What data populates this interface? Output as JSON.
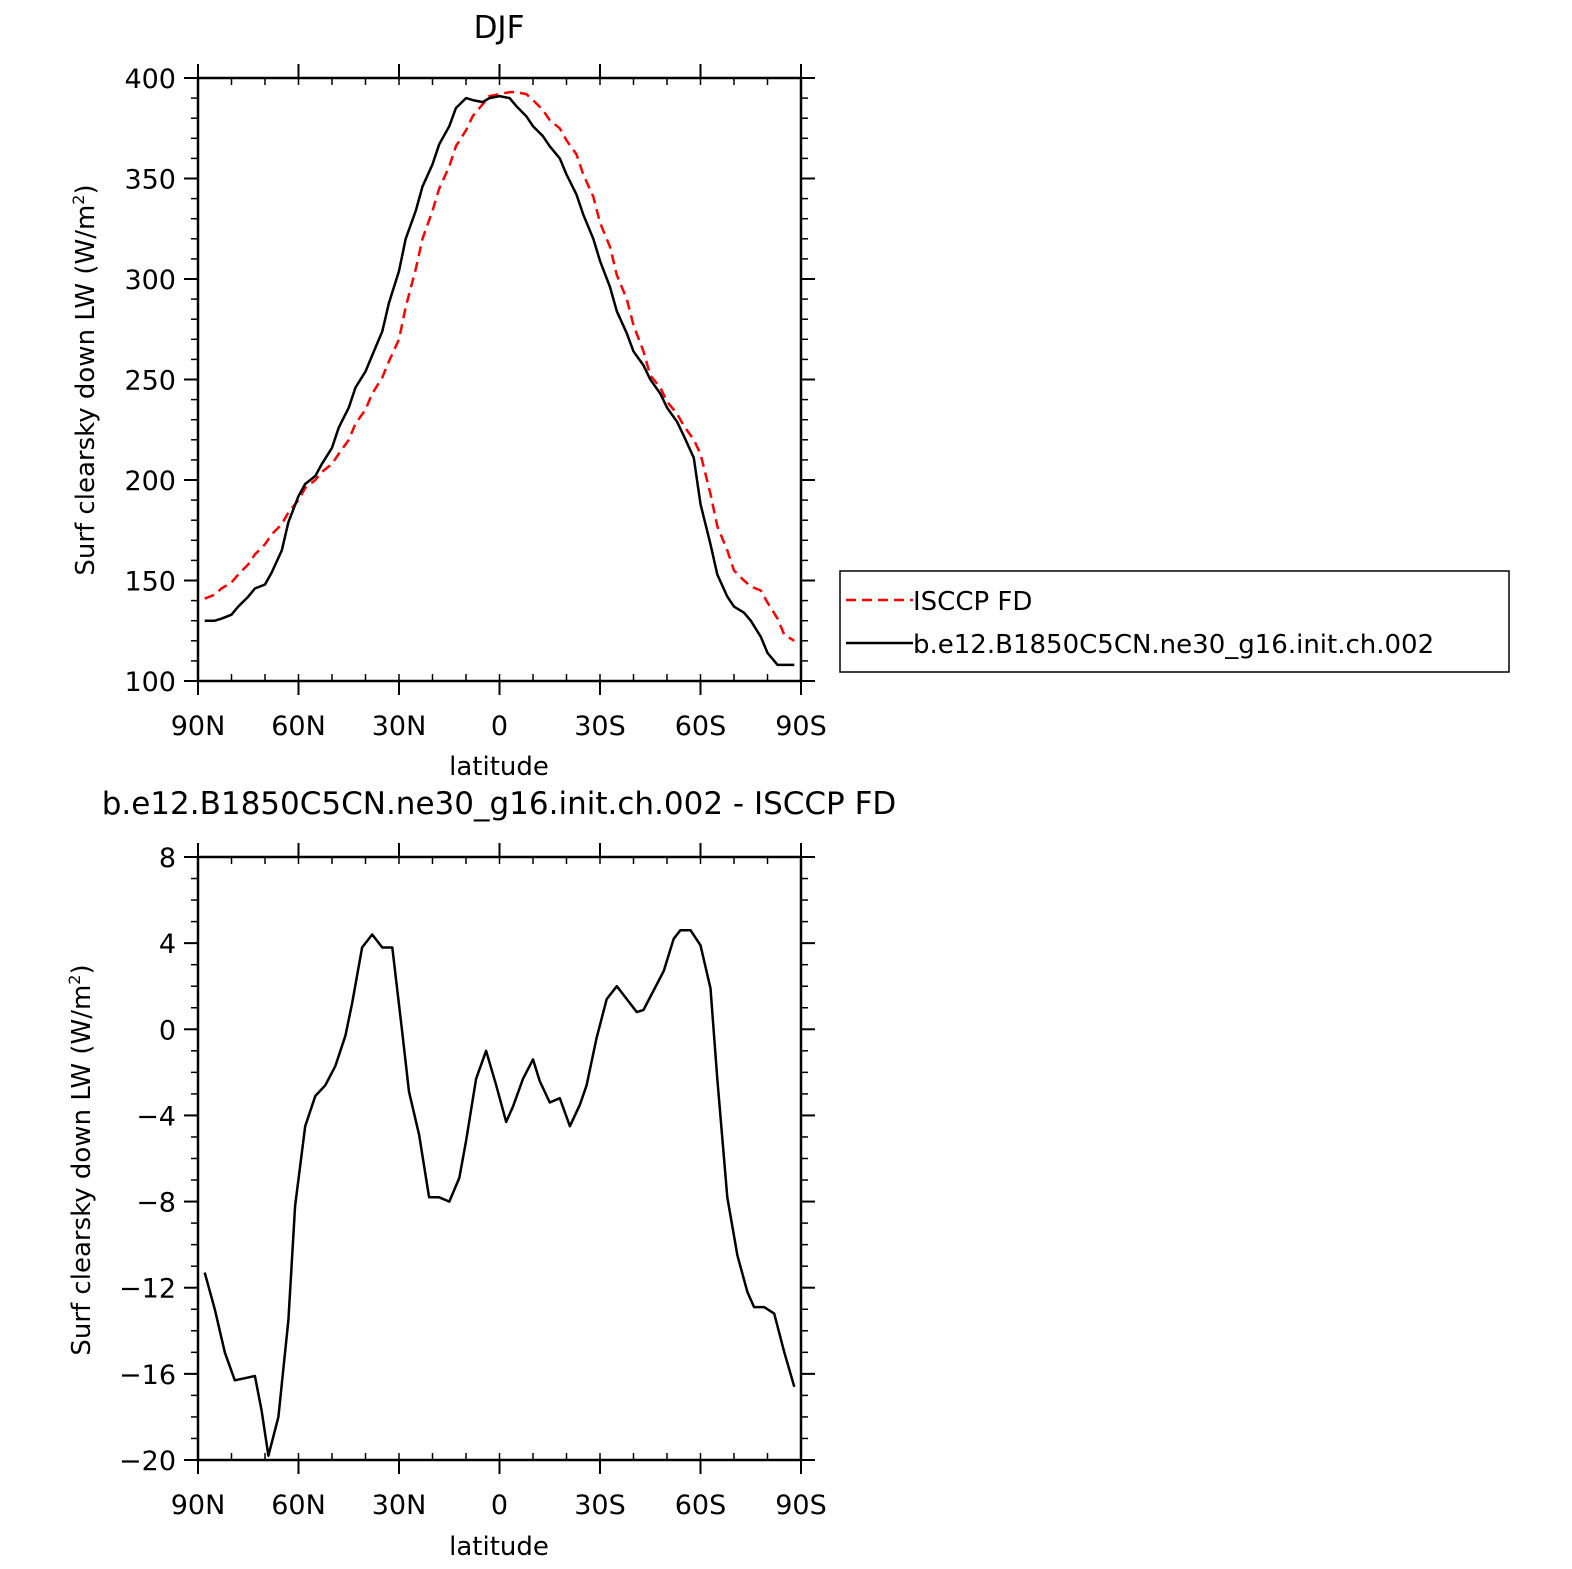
{
  "chart_data": [
    {
      "type": "line",
      "title": "DJF",
      "xlabel": "latitude",
      "ylabel_main": "Surf clearsky down LW (W/m",
      "ylabel_sup": "2",
      "ylabel_close": ")",
      "xlim": [
        90,
        -90
      ],
      "ylim": [
        100,
        400
      ],
      "xticks": [
        90,
        60,
        30,
        0,
        -30,
        -60,
        -90
      ],
      "xtick_labels": [
        "90N",
        "60N",
        "30N",
        "0",
        "30S",
        "60S",
        "90S"
      ],
      "yticks": [
        100,
        150,
        200,
        250,
        300,
        350,
        400
      ],
      "ytick_labels": [
        "100",
        "150",
        "200",
        "250",
        "300",
        "350",
        "400"
      ],
      "legend_position": "right",
      "x": [
        88,
        85,
        83,
        80,
        78,
        75,
        73,
        70,
        68,
        65,
        63,
        60,
        58,
        55,
        53,
        50,
        48,
        45,
        43,
        40,
        38,
        35,
        33,
        30,
        28,
        25,
        23,
        20,
        18,
        15,
        13,
        10,
        8,
        5,
        3,
        0,
        -3,
        -5,
        -8,
        -10,
        -13,
        -15,
        -18,
        -20,
        -23,
        -25,
        -28,
        -30,
        -33,
        -35,
        -38,
        -40,
        -43,
        -45,
        -48,
        -50,
        -53,
        -55,
        -58,
        -60,
        -63,
        -65,
        -68,
        -70,
        -73,
        -75,
        -78,
        -80,
        -83,
        -85,
        -88
      ],
      "series": [
        {
          "name": "ISCCP FD",
          "color": "#ff0000",
          "dash": "dashed",
          "values": [
            141,
            143,
            146,
            149,
            153,
            158,
            163,
            168,
            173,
            178,
            184,
            190,
            196,
            200,
            204,
            208,
            213,
            220,
            228,
            235,
            243,
            251,
            259,
            270,
            286,
            305,
            320,
            334,
            345,
            356,
            366,
            374,
            381,
            387,
            391,
            392,
            393,
            393,
            392,
            389,
            384,
            379,
            375,
            369,
            362,
            352,
            341,
            328,
            316,
            302,
            290,
            277,
            264,
            252,
            246,
            239,
            233,
            227,
            220,
            213,
            193,
            177,
            165,
            155,
            150,
            147,
            145,
            139,
            131,
            123,
            120
          ]
        },
        {
          "name": "b.e12.B1850C5CN.ne30_g16.init.ch.002",
          "color": "#000000",
          "dash": "solid",
          "values": [
            130,
            130,
            131,
            133,
            137,
            142,
            146,
            148,
            154,
            165,
            179,
            192,
            198,
            202,
            208,
            216,
            226,
            236,
            246,
            254,
            262,
            274,
            288,
            304,
            320,
            334,
            346,
            357,
            367,
            376,
            385,
            390,
            389,
            388,
            390,
            391,
            390,
            386,
            381,
            376,
            371,
            366,
            360,
            352,
            342,
            332,
            320,
            309,
            296,
            284,
            273,
            264,
            257,
            250,
            243,
            236,
            229,
            222,
            211,
            188,
            168,
            153,
            142,
            137,
            134,
            130,
            122,
            114,
            108,
            108,
            108
          ]
        }
      ]
    },
    {
      "type": "line",
      "title": "b.e12.B1850C5CN.ne30_g16.init.ch.002 - ISCCP FD",
      "xlabel": "latitude",
      "ylabel_main": "Surf clearsky down LW (W/m",
      "ylabel_sup": "2",
      "ylabel_close": ")",
      "xlim": [
        90,
        -90
      ],
      "ylim": [
        -20,
        8
      ],
      "xticks": [
        90,
        60,
        30,
        0,
        -30,
        -60,
        -90
      ],
      "xtick_labels": [
        "90N",
        "60N",
        "30N",
        "0",
        "30S",
        "60S",
        "90S"
      ],
      "yticks": [
        -20,
        -16,
        -12,
        -8,
        -4,
        0,
        4,
        8
      ],
      "ytick_labels": [
        "−20",
        "−16",
        "−12",
        "−8",
        "−4",
        "0",
        "4",
        "8"
      ],
      "x": [
        88,
        85,
        82,
        79,
        76,
        73,
        71,
        69,
        66,
        63,
        61,
        58,
        55,
        52,
        49,
        46,
        44,
        41,
        38,
        35,
        32,
        29,
        27,
        24,
        21,
        18,
        15,
        12,
        10,
        7,
        4,
        1,
        -2,
        -4,
        -7,
        -10,
        -12,
        -15,
        -18,
        -21,
        -24,
        -26,
        -29,
        -32,
        -35,
        -38,
        -41,
        -43,
        -46,
        -49,
        -52,
        -54,
        -57,
        -60,
        -63,
        -65,
        -68,
        -71,
        -74,
        -76,
        -79,
        -82,
        -85,
        -88
      ],
      "series": [
        {
          "name": "",
          "color": "#000000",
          "values": [
            -11.3,
            -13.0,
            -15.0,
            -16.3,
            -16.2,
            -16.1,
            -17.7,
            -19.8,
            -18.0,
            -13.5,
            -8.2,
            -4.5,
            -3.1,
            -2.6,
            -1.7,
            -0.3,
            1.2,
            3.8,
            4.4,
            3.8,
            3.8,
            -0.2,
            -2.9,
            -4.9,
            -7.8,
            -7.8,
            -8.0,
            -6.9,
            -5.2,
            -2.3,
            -1.0,
            -2.6,
            -4.3,
            -3.6,
            -2.3,
            -1.4,
            -2.4,
            -3.4,
            -3.2,
            -4.5,
            -3.5,
            -2.6,
            -0.4,
            1.4,
            2.0,
            1.4,
            0.8,
            0.9,
            1.8,
            2.7,
            4.2,
            4.6,
            4.6,
            3.9,
            1.9,
            -2.3,
            -7.8,
            -10.5,
            -12.2,
            -12.9,
            -12.9,
            -13.2,
            -15.0,
            -16.6
          ]
        }
      ]
    }
  ]
}
